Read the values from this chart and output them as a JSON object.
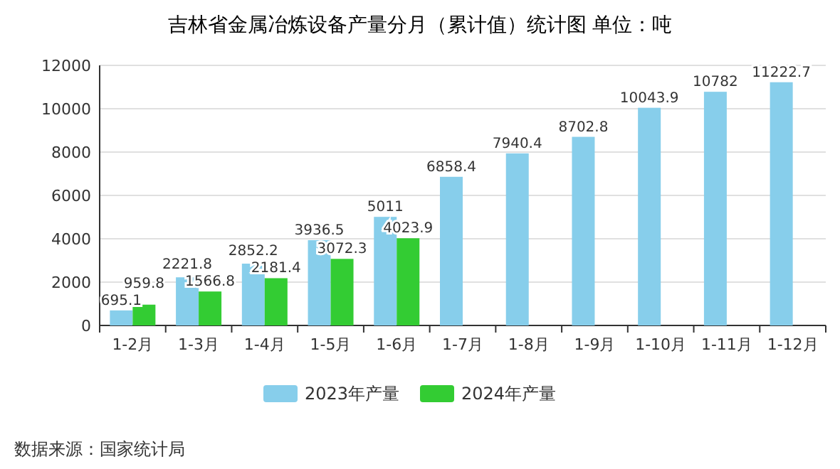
{
  "chart_data": {
    "type": "bar",
    "title": "吉林省金属冶炼设备产量分月（累计值）统计图 单位：吨",
    "categories": [
      "1-2月",
      "1-3月",
      "1-4月",
      "1-5月",
      "1-6月",
      "1-7月",
      "1-8月",
      "1-9月",
      "1-10月",
      "1-11月",
      "1-12月"
    ],
    "series": [
      {
        "name": "2023年产量",
        "color": "#87ceeb",
        "values": [
          695.1,
          2221.8,
          2852.2,
          3936.5,
          5011,
          6858.4,
          7940.4,
          8702.8,
          10043.9,
          10782,
          11222.7
        ]
      },
      {
        "name": "2024年产量",
        "color": "#33cc33",
        "values": [
          959.8,
          1566.8,
          2181.4,
          3072.3,
          4023.9,
          null,
          null,
          null,
          null,
          null,
          null
        ]
      }
    ],
    "ylim": [
      0,
      12000
    ],
    "yticks": [
      0,
      2000,
      4000,
      6000,
      8000,
      10000,
      12000
    ],
    "grid": "y",
    "legend": "bottom",
    "data_labels": true,
    "annotations": [
      "数据来源：国家统计局"
    ]
  }
}
